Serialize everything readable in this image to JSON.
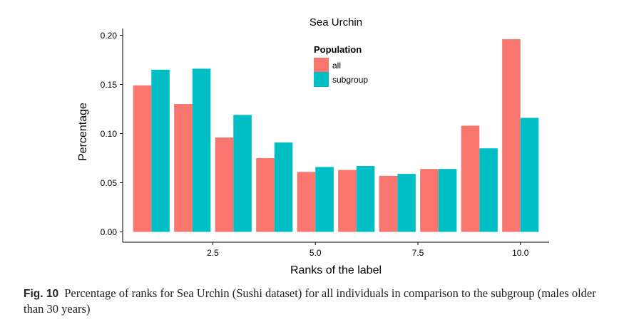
{
  "chart_data": {
    "type": "bar",
    "title": "Sea Urchin",
    "xlabel": "Ranks of the label",
    "ylabel": "Percentage",
    "categories": [
      1,
      2,
      3,
      4,
      5,
      6,
      7,
      8,
      9,
      10
    ],
    "x_ticks": [
      "2.5",
      "5.0",
      "7.5",
      "10.0"
    ],
    "x_tick_values": [
      2.5,
      5.0,
      7.5,
      10.0
    ],
    "y_ticks": [
      "0.00",
      "0.05",
      "0.10",
      "0.15",
      "0.20"
    ],
    "y_tick_values": [
      0,
      0.05,
      0.1,
      0.15,
      0.2
    ],
    "xlim": [
      0.3,
      10.7
    ],
    "ylim": [
      0,
      0.2
    ],
    "grid": false,
    "legend": {
      "title": "Population",
      "position": "top-center"
    },
    "series": [
      {
        "name": "all",
        "color": "#F8766D",
        "values": [
          0.149,
          0.13,
          0.096,
          0.075,
          0.061,
          0.063,
          0.057,
          0.064,
          0.108,
          0.196
        ]
      },
      {
        "name": "subgroup",
        "color": "#00BFC4",
        "values": [
          0.165,
          0.166,
          0.119,
          0.091,
          0.066,
          0.067,
          0.059,
          0.064,
          0.085,
          0.116
        ]
      }
    ]
  },
  "caption": {
    "label": "Fig. 10",
    "text": "Percentage of ranks for Sea Urchin (Sushi dataset) for all individuals in comparison to the subgroup (males older than 30 years)"
  }
}
